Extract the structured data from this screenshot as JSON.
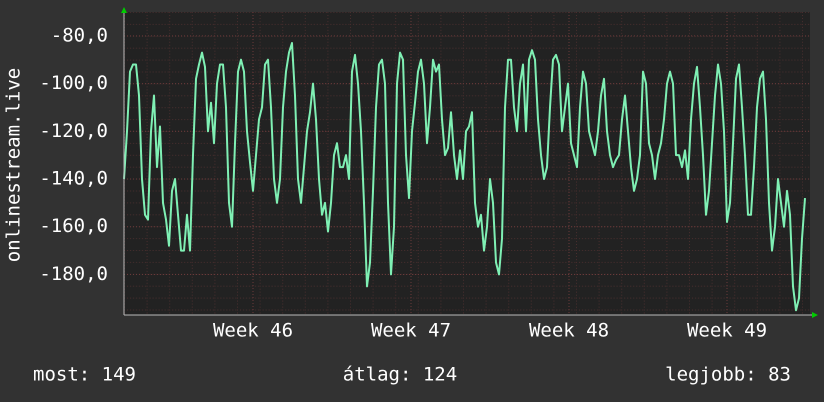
{
  "chart_data": {
    "type": "line",
    "y_label": "onlinestream.live",
    "x": [
      0,
      3,
      6,
      9,
      12,
      15,
      18,
      21,
      24,
      27,
      30,
      33,
      36,
      39,
      42,
      45,
      48,
      51,
      54,
      57,
      60,
      63,
      66,
      69,
      72,
      75,
      78,
      81,
      84,
      87,
      90,
      93,
      96,
      99,
      102,
      105,
      108,
      111,
      114,
      117,
      120,
      123,
      126,
      129,
      132,
      135,
      138,
      141,
      144,
      147,
      150,
      153,
      156,
      159,
      162,
      165,
      168,
      171,
      174,
      177,
      180,
      183,
      186,
      189,
      192,
      195,
      198,
      201,
      204,
      207,
      210,
      213,
      216,
      219,
      222,
      225,
      228,
      231,
      234,
      237,
      240,
      243,
      246,
      249,
      252,
      255,
      258,
      261,
      264,
      267,
      270,
      273,
      276,
      279,
      282,
      285,
      288,
      291,
      294,
      297,
      300,
      303,
      306,
      309,
      312,
      315,
      318,
      321,
      324,
      327,
      330,
      333,
      336,
      339,
      342,
      345,
      348,
      351,
      354,
      357,
      360,
      363,
      366,
      369,
      372,
      375,
      378,
      381,
      384,
      387,
      390,
      393,
      396,
      399,
      402,
      405,
      408,
      411,
      414,
      417,
      420,
      423,
      426,
      429,
      432,
      435,
      438,
      441,
      444,
      447,
      450,
      453,
      456,
      459,
      462,
      465,
      468,
      471,
      474,
      477,
      480,
      483,
      486,
      489,
      492,
      495,
      498,
      501,
      504,
      507,
      510,
      513,
      516,
      519,
      522,
      525,
      528,
      531,
      534,
      537,
      540,
      543,
      546,
      549,
      552,
      555,
      558,
      561,
      564,
      567,
      570,
      573,
      576,
      579,
      582,
      585,
      588,
      591,
      594,
      597,
      600,
      603,
      606,
      609,
      612,
      615,
      618,
      621,
      624,
      627,
      630,
      633,
      636,
      639,
      642,
      645,
      648,
      651,
      654,
      657,
      660,
      663,
      666,
      669,
      672,
      675,
      678,
      681
    ],
    "series": [
      {
        "color": "#7ff0b4",
        "values": [
          -140,
          -120,
          -95,
          -92,
          -92,
          -105,
          -140,
          -155,
          -157,
          -120,
          -105,
          -135,
          -118,
          -150,
          -157,
          -168,
          -145,
          -140,
          -155,
          -170,
          -170,
          -155,
          -170,
          -130,
          -98,
          -92,
          -87,
          -93,
          -120,
          -108,
          -125,
          -100,
          -92,
          -92,
          -110,
          -150,
          -160,
          -125,
          -95,
          -90,
          -95,
          -120,
          -133,
          -145,
          -130,
          -115,
          -110,
          -92,
          -90,
          -110,
          -140,
          -150,
          -140,
          -110,
          -95,
          -87,
          -83,
          -105,
          -140,
          -150,
          -135,
          -120,
          -112,
          -100,
          -115,
          -140,
          -155,
          -150,
          -162,
          -150,
          -130,
          -125,
          -135,
          -135,
          -130,
          -140,
          -95,
          -88,
          -100,
          -120,
          -150,
          -185,
          -175,
          -145,
          -110,
          -92,
          -90,
          -100,
          -150,
          -180,
          -160,
          -100,
          -87,
          -90,
          -130,
          -148,
          -120,
          -108,
          -95,
          -90,
          -100,
          -125,
          -110,
          -90,
          -95,
          -92,
          -115,
          -130,
          -127,
          -112,
          -130,
          -140,
          -128,
          -140,
          -120,
          -118,
          -112,
          -150,
          -160,
          -155,
          -170,
          -160,
          -140,
          -150,
          -175,
          -180,
          -165,
          -110,
          -90,
          -90,
          -110,
          -120,
          -100,
          -92,
          -120,
          -90,
          -86,
          -90,
          -115,
          -130,
          -140,
          -135,
          -110,
          -90,
          -88,
          -92,
          -120,
          -110,
          -100,
          -125,
          -130,
          -135,
          -110,
          -95,
          -100,
          -120,
          -125,
          -130,
          -120,
          -105,
          -98,
          -120,
          -130,
          -135,
          -132,
          -130,
          -115,
          -105,
          -120,
          -135,
          -145,
          -140,
          -130,
          -95,
          -100,
          -125,
          -130,
          -140,
          -130,
          -125,
          -115,
          -100,
          -95,
          -100,
          -130,
          -130,
          -135,
          -128,
          -140,
          -115,
          -100,
          -93,
          -110,
          -130,
          -155,
          -145,
          -125,
          -105,
          -92,
          -100,
          -120,
          -158,
          -150,
          -125,
          -98,
          -92,
          -110,
          -130,
          -155,
          -155,
          -135,
          -110,
          -98,
          -95,
          -115,
          -150,
          -170,
          -160,
          -140,
          -150,
          -160,
          -145,
          -155,
          -185,
          -195,
          -190,
          -165,
          -148
        ]
      }
    ],
    "xlim": [
      0,
      686
    ],
    "xticks": [
      {
        "value": 129,
        "label": "Week 46"
      },
      {
        "value": 287,
        "label": "Week 47"
      },
      {
        "value": 445,
        "label": "Week 48"
      },
      {
        "value": 603,
        "label": "Week 49"
      }
    ],
    "ylim": [
      -197,
      -70
    ],
    "yticks": [
      {
        "value": -80,
        "label": "-80,0"
      },
      {
        "value": -100,
        "label": "-100,0"
      },
      {
        "value": -120,
        "label": "-120,0"
      },
      {
        "value": -140,
        "label": "-140,0"
      },
      {
        "value": -160,
        "label": "-160,0"
      },
      {
        "value": -180,
        "label": "-180,0"
      }
    ],
    "grid": true,
    "stats": [
      "most: 149",
      "átlag: 124",
      "legjobb: 83"
    ]
  }
}
